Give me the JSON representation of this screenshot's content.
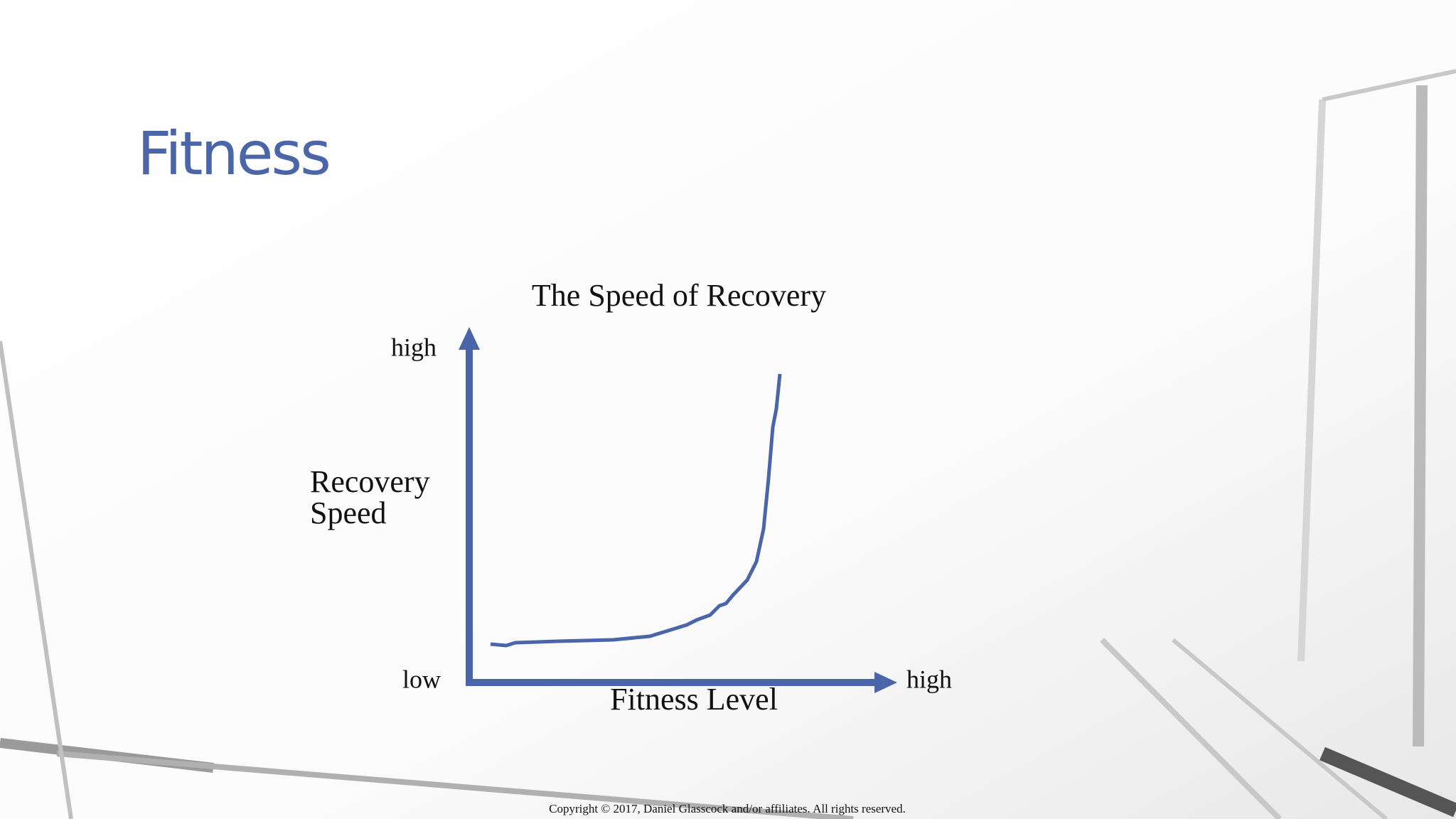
{
  "header": {
    "title": "Fitness"
  },
  "diagram": {
    "title": "The Speed of Recovery",
    "y_axis": {
      "label": [
        "Recovery",
        "Speed"
      ],
      "high": "high"
    },
    "x_axis": {
      "label": "Fitness Level",
      "high": "high"
    },
    "origin_label": "low"
  },
  "footer": {
    "copyright": "Copyright © 2017, Daniel Glasscock and/or affiliates.  All rights reserved."
  }
}
